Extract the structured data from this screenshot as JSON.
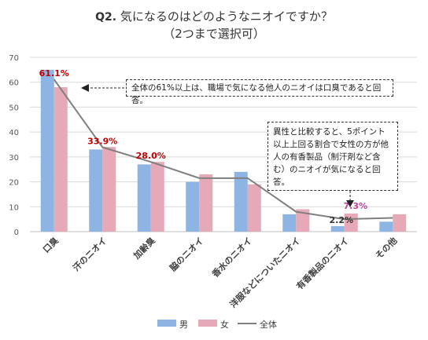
{
  "title": {
    "q_label": "Q2.",
    "line1": "気になるのはどのようなニオイですか？",
    "line2": "（2つまで選択可）"
  },
  "colors": {
    "male": "#8db4e2",
    "female": "#e6a9b7",
    "total": "#7f7f7f",
    "label_red": "#c00000",
    "label_pink": "#c040a0",
    "grid": "#d9d9d9"
  },
  "annotations": {
    "note1": "全体の61%以上は、職場で気になる他人のニオイは口臭であると回答。",
    "note2": "異性と比較すると、5ポイント以上上回る割合で女性の方が他人の有香製品（制汗剤など含む）のニオイが気になると回答。"
  },
  "chart_data": {
    "type": "bar",
    "categories": [
      "口臭",
      "汗のニオイ",
      "加齢臭",
      "脇のニオイ",
      "香水のニオイ",
      "洋服などについたニオイ",
      "有香製品のニオイ",
      "その他"
    ],
    "series": [
      {
        "name": "男",
        "type": "bar",
        "values": [
          65,
          33,
          27,
          20,
          24,
          7,
          2.2,
          4
        ]
      },
      {
        "name": "女",
        "type": "bar",
        "values": [
          58,
          34,
          28,
          23,
          19,
          9,
          7.3,
          7
        ]
      },
      {
        "name": "全体",
        "type": "line",
        "values": [
          61.1,
          33.9,
          28.0,
          21.5,
          21.5,
          8,
          5,
          5.5
        ]
      }
    ],
    "data_labels": [
      {
        "category": "口臭",
        "series": "全体",
        "text": "61.1%",
        "color": "red"
      },
      {
        "category": "汗のニオイ",
        "series": "全体",
        "text": "33.9%",
        "color": "red"
      },
      {
        "category": "加齢臭",
        "series": "全体",
        "text": "28.0%",
        "color": "red"
      },
      {
        "category": "有香製品のニオイ",
        "series": "男",
        "text": "2.2%",
        "color": "dark"
      },
      {
        "category": "有香製品のニオイ",
        "series": "女",
        "text": "7.3%",
        "color": "pink"
      }
    ],
    "ylim": [
      0,
      70
    ],
    "yticks": [
      0,
      10,
      20,
      30,
      40,
      50,
      60,
      70
    ],
    "grid": true,
    "legend": {
      "position": "bottom",
      "entries": [
        "男",
        "女",
        "全体"
      ]
    }
  }
}
